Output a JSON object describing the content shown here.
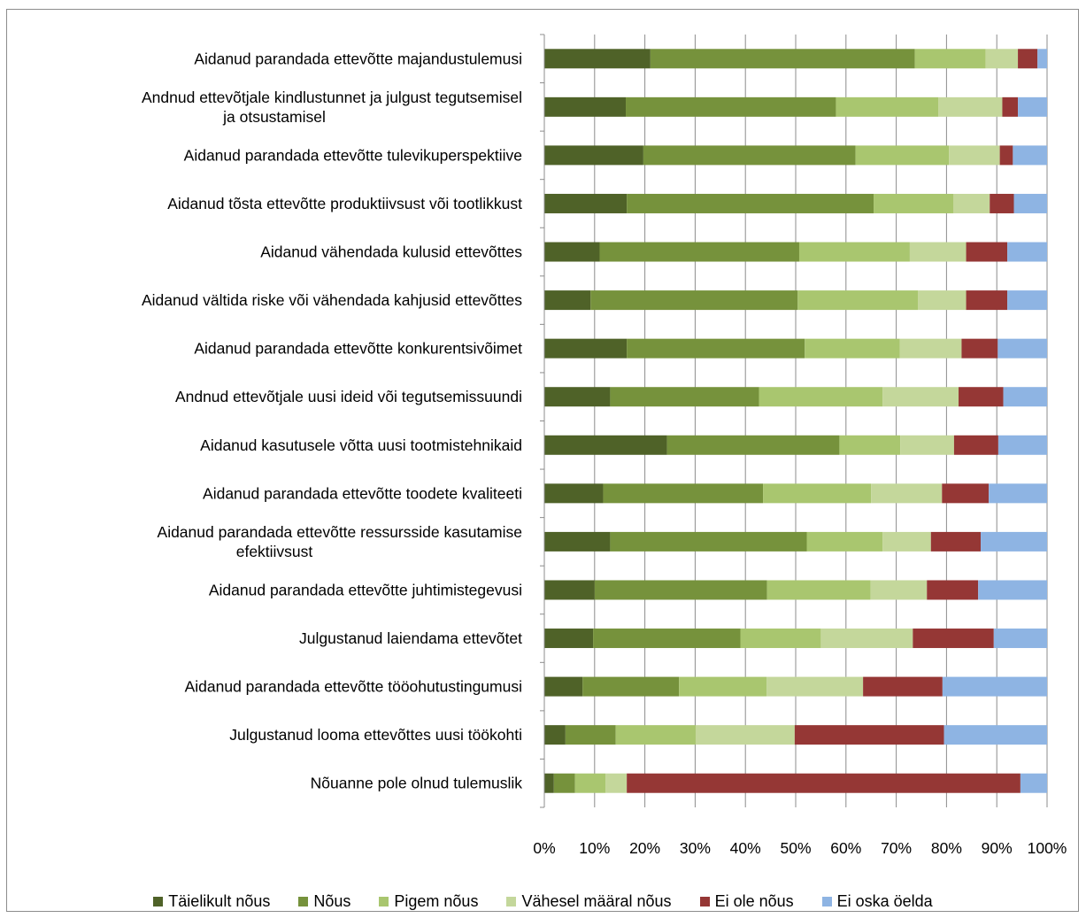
{
  "chart_data": {
    "type": "bar",
    "orientation": "horizontal",
    "stacked": true,
    "normalized": true,
    "categories": [
      "Aidanud parandada ettevõtte majandustulemusi",
      "Andnud ettevõtjale kindlustunnet ja julgust tegutsemisel ja otsustamisel",
      "Aidanud parandada ettevõtte tulevikuperspektiive",
      "Aidanud tõsta ettevõtte produktiivsust või tootlikkust",
      "Aidanud vähendada kulusid ettevõttes",
      "Aidanud vältida riske või vähendada kahjusid ettevõttes",
      "Aidanud parandada ettevõtte konkurentsivõimet",
      "Andnud ettevõtjale uusi ideid või tegutsemissuundi",
      "Aidanud kasutusele võtta uusi tootmistehnikaid",
      "Aidanud parandada ettevõtte toodete kvaliteeti",
      "Aidanud parandada ettevõtte ressursside kasutamise efektiivsust",
      "Aidanud parandada ettevõtte juhtimistegevusi",
      "Julgustanud laiendama ettevõtet",
      "Aidanud parandada ettevõtte tööohutustingumusi",
      "Julgustanud looma ettevõttes uusi töökohti",
      "Nõuanne pole olnud tulemuslik"
    ],
    "category_label_lines": [
      [
        "Aidanud parandada ettevõtte majandustulemusi"
      ],
      [
        "Andnud ettevõtjale kindlustunnet ja julgust tegutsemisel",
        "ja otsustamisel"
      ],
      [
        "Aidanud parandada ettevõtte tulevikuperspektiive"
      ],
      [
        "Aidanud tõsta ettevõtte produktiivsust või tootlikkust"
      ],
      [
        "Aidanud vähendada kulusid ettevõttes"
      ],
      [
        "Aidanud vältida riske või vähendada kahjusid ettevõttes"
      ],
      [
        "Aidanud parandada ettevõtte konkurentsivõimet"
      ],
      [
        "Andnud ettevõtjale uusi ideid või tegutsemissuundi"
      ],
      [
        "Aidanud kasutusele võtta uusi tootmistehnikaid"
      ],
      [
        "Aidanud parandada ettevõtte toodete kvaliteeti"
      ],
      [
        "Aidanud parandada ettevõtte ressursside kasutamise",
        "efektiivsust"
      ],
      [
        "Aidanud parandada ettevõtte juhtimistegevusi"
      ],
      [
        "Julgustanud laiendama ettevõtet"
      ],
      [
        "Aidanud parandada ettevõtte tööohutustingumusi"
      ],
      [
        "Julgustanud looma ettevõttes uusi töökohti"
      ],
      [
        "Nõuanne pole olnud tulemuslik"
      ]
    ],
    "series": [
      {
        "name": "Täielikult nõus",
        "color": "#4f6228",
        "values": [
          21.1,
          16.2,
          19.7,
          16.4,
          11.0,
          9.2,
          16.4,
          13.1,
          24.4,
          11.7,
          13.1,
          10.0,
          9.7,
          7.6,
          4.2,
          1.9
        ]
      },
      {
        "name": "Nõus",
        "color": "#76923c",
        "values": [
          52.6,
          41.8,
          42.2,
          49.1,
          39.7,
          41.2,
          35.4,
          29.6,
          34.3,
          31.8,
          39.1,
          34.3,
          29.3,
          19.2,
          10.0,
          4.2
        ]
      },
      {
        "name": "Pigem nõus",
        "color": "#a9c66f",
        "values": [
          14.1,
          20.4,
          18.6,
          15.9,
          22.0,
          23.9,
          18.9,
          24.6,
          12.1,
          21.5,
          15.1,
          20.6,
          16.0,
          17.4,
          15.9,
          6.1
        ]
      },
      {
        "name": "Vähesel määral nõus",
        "color": "#c4d79b",
        "values": [
          6.4,
          12.7,
          10.1,
          7.2,
          11.2,
          9.6,
          12.3,
          15.1,
          10.7,
          14.1,
          9.6,
          11.2,
          18.3,
          19.2,
          19.7,
          4.2
        ]
      },
      {
        "name": "Ei ole nõus",
        "color": "#953735",
        "values": [
          3.9,
          3.1,
          2.6,
          4.8,
          8.2,
          8.2,
          7.2,
          8.9,
          8.8,
          9.3,
          9.9,
          10.2,
          16.1,
          15.8,
          29.7,
          78.3
        ]
      },
      {
        "name": "Ei oska öelda",
        "color": "#8eb4e3",
        "values": [
          1.9,
          5.8,
          6.8,
          6.6,
          7.9,
          7.9,
          9.8,
          8.7,
          9.7,
          11.6,
          13.2,
          13.7,
          10.6,
          20.8,
          20.5,
          5.3
        ]
      }
    ],
    "x_ticks": [
      "0%",
      "10%",
      "20%",
      "30%",
      "40%",
      "50%",
      "60%",
      "70%",
      "80%",
      "90%",
      "100%"
    ],
    "xlim": [
      0,
      100
    ],
    "grid": true,
    "legend_position": "bottom",
    "title": "",
    "xlabel": "",
    "ylabel": ""
  }
}
